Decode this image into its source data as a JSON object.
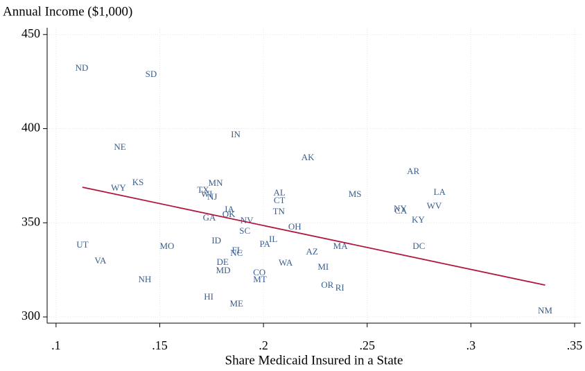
{
  "chart_data": {
    "type": "scatter",
    "ylabel": "Annual Income ($1,000)",
    "xlabel": "Share Medicaid Insured in a State",
    "labels": [
      "ND",
      "SD",
      "IN",
      "NE",
      "AK",
      "AR",
      "KS",
      "WY",
      "MN",
      "TX",
      "WI",
      "NJ",
      "AL",
      "CT",
      "MS",
      "LA",
      "NY",
      "CA",
      "WV",
      "TN",
      "IA",
      "OK",
      "GA",
      "NV",
      "KY",
      "IL",
      "SC",
      "OH",
      "UT",
      "MO",
      "ID",
      "PA",
      "MA",
      "DC",
      "FL",
      "NC",
      "AZ",
      "VA",
      "DE",
      "WA",
      "MI",
      "MD",
      "CO",
      "MT",
      "NH",
      "OR",
      "RI",
      "HI",
      "ME",
      "NM"
    ],
    "x": [
      0.1124,
      0.1458,
      0.1866,
      0.1308,
      0.2214,
      0.2722,
      0.1395,
      0.1301,
      0.1769,
      0.1709,
      0.1726,
      0.1753,
      0.2077,
      0.2077,
      0.2441,
      0.2849,
      0.2659,
      0.2662,
      0.2823,
      0.2074,
      0.1836,
      0.1833,
      0.1739,
      0.192,
      0.2746,
      0.2047,
      0.191,
      0.2151,
      0.1127,
      0.1535,
      0.1773,
      0.2007,
      0.2371,
      0.2749,
      0.1873,
      0.187,
      0.2234,
      0.1214,
      0.1803,
      0.2107,
      0.2288,
      0.1806,
      0.198,
      0.1983,
      0.1428,
      0.2308,
      0.2368,
      0.1736,
      0.187,
      0.3358
    ],
    "values": [
      431.9,
      428.6,
      396.5,
      389.9,
      384.4,
      377.0,
      371.1,
      368.2,
      370.7,
      367.1,
      364.8,
      363.4,
      365.6,
      361.5,
      364.8,
      366.0,
      357.1,
      356.0,
      358.6,
      355.6,
      356.7,
      354.2,
      352.3,
      350.8,
      351.2,
      340.9,
      345.3,
      347.5,
      337.9,
      337.2,
      340.2,
      338.3,
      337.2,
      337.2,
      335.0,
      333.5,
      334.3,
      329.5,
      328.7,
      328.4,
      326.2,
      324.3,
      323.2,
      319.5,
      319.5,
      316.6,
      315.1,
      310.3,
      306.6,
      302.9
    ],
    "color": "#3b5e8c",
    "fit": {
      "x": [
        0.1127,
        0.3358
      ],
      "y": [
        368.9,
        316.9
      ],
      "color": "#b2163e"
    },
    "xlim": [
      0.0957,
      0.353
    ],
    "ylim": [
      296.7,
      453.6
    ],
    "xticks": [
      {
        "value": 0.1,
        "label": ".1"
      },
      {
        "value": 0.15,
        "label": ".15"
      },
      {
        "value": 0.2,
        "label": ".2"
      },
      {
        "value": 0.25,
        "label": ".25"
      },
      {
        "value": 0.3,
        "label": ".3"
      },
      {
        "value": 0.35,
        "label": ".35"
      }
    ],
    "yticks": [
      300,
      350,
      400,
      450
    ],
    "grid": true
  }
}
